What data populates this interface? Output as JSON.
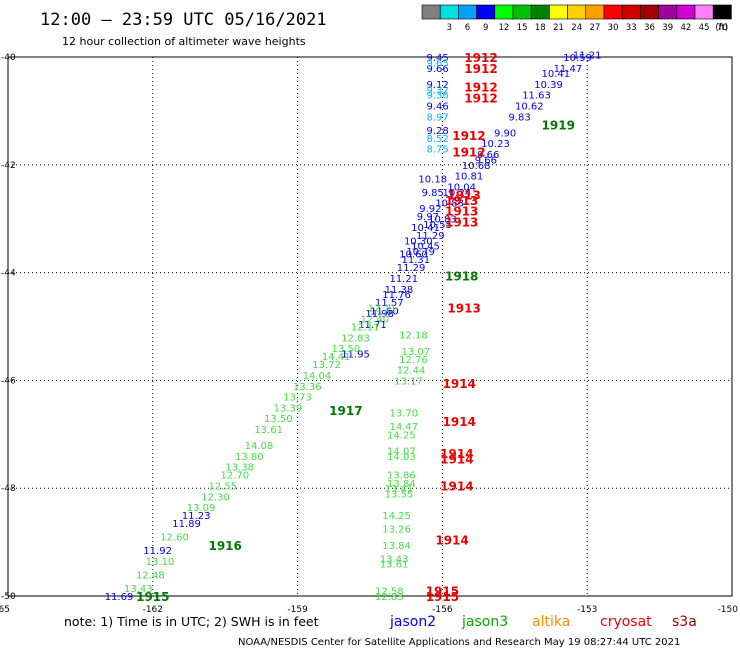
{
  "header": {
    "title": "12:00 – 23:59 UTC 05/16/2021",
    "subtitle": "12 hour collection of altimeter wave heights"
  },
  "colorbar": {
    "unit_label": "(ft)",
    "bins": [
      {
        "label": "",
        "color": "#808080"
      },
      {
        "label": "3",
        "color": "#00e0e0"
      },
      {
        "label": "6",
        "color": "#00a0ff"
      },
      {
        "label": "9",
        "color": "#0000ff"
      },
      {
        "label": "12",
        "color": "#00ff00"
      },
      {
        "label": "15",
        "color": "#00c000"
      },
      {
        "label": "18",
        "color": "#008000"
      },
      {
        "label": "21",
        "color": "#ffff00"
      },
      {
        "label": "24",
        "color": "#ffd000"
      },
      {
        "label": "27",
        "color": "#ffa000"
      },
      {
        "label": "30",
        "color": "#ff0000"
      },
      {
        "label": "33",
        "color": "#d00000"
      },
      {
        "label": "36",
        "color": "#a00000"
      },
      {
        "label": "39",
        "color": "#a000a0"
      },
      {
        "label": "42",
        "color": "#d000d0"
      },
      {
        "label": "45",
        "color": "#ff80ff"
      },
      {
        "label": "70",
        "color": "#000000"
      }
    ]
  },
  "note": "note:  1) Time is in UTC;  2) SWH is in feet",
  "satellites": [
    {
      "name": "jason2",
      "color": "#0000ee"
    },
    {
      "name": "jason3",
      "color": "#00aa00"
    },
    {
      "name": "altika",
      "color": "#ff8c00"
    },
    {
      "name": "cryosat",
      "color": "#ee0000"
    },
    {
      "name": "s3a",
      "color": "#990000"
    }
  ],
  "credit": "NOAA/NESDIS Center for Satellite Applications and Research     May 19 08:27:44 UTC 2021",
  "chart_data": {
    "type": "scatter",
    "title": "12:00 – 23:59 UTC 05/16/2021",
    "subtitle": "12 hour collection of altimeter wave heights",
    "xlabel": "",
    "ylabel": "",
    "xlim": [
      -165,
      -150
    ],
    "ylim": [
      -50,
      -40
    ],
    "x_ticks": [
      "-165",
      "-162",
      "-159",
      "-156",
      "-153",
      "-150"
    ],
    "y_ticks": [
      "-40",
      "-42",
      "-44",
      "-46",
      "-48",
      "-50"
    ],
    "grid": true,
    "units": "ft",
    "colors": {
      "jason2": "#0000ee",
      "jason3_light": "#44dd44",
      "jason3_dark": "#007700",
      "cryosat": "#ee0000",
      "cyan": "#00bbee"
    },
    "points": [
      {
        "x": -154.4,
        "y": -41.1,
        "v": "9.83",
        "c": "jason2"
      },
      {
        "x": -154.2,
        "y": -40.9,
        "v": "10.62",
        "c": "jason2"
      },
      {
        "x": -154.05,
        "y": -40.7,
        "v": "11.63",
        "c": "jason2"
      },
      {
        "x": -153.8,
        "y": -40.5,
        "v": "10.39",
        "c": "jason2"
      },
      {
        "x": -153.65,
        "y": -40.3,
        "v": "10.41",
        "c": "jason2"
      },
      {
        "x": -153.4,
        "y": -40.2,
        "v": "11.47",
        "c": "jason2"
      },
      {
        "x": -153.2,
        "y": -40.0,
        "v": "10.59",
        "c": "jason2"
      },
      {
        "x": -153.0,
        "y": -39.95,
        "v": "11.21",
        "c": "jason2"
      },
      {
        "x": -154.7,
        "y": -41.4,
        "v": "9.90",
        "c": "jason2"
      },
      {
        "x": -154.9,
        "y": -41.6,
        "v": "10.23",
        "c": "jason2"
      },
      {
        "x": -155.05,
        "y": -41.8,
        "v": "9.66",
        "c": "jason2"
      },
      {
        "x": -155.1,
        "y": -41.9,
        "v": "9.66",
        "c": "jason2"
      },
      {
        "x": -155.3,
        "y": -42.0,
        "v": "10.68",
        "c": "jason2"
      },
      {
        "x": -155.45,
        "y": -42.2,
        "v": "10.81",
        "c": "jason2"
      },
      {
        "x": -155.6,
        "y": -42.4,
        "v": "10.04",
        "c": "jason2"
      },
      {
        "x": -155.7,
        "y": -42.5,
        "v": "10.24",
        "c": "jason2"
      },
      {
        "x": -155.85,
        "y": -42.7,
        "v": "10.83",
        "c": "jason2"
      },
      {
        "x": -156.0,
        "y": -43.0,
        "v": "10.83",
        "c": "jason2"
      },
      {
        "x": -156.1,
        "y": -43.1,
        "v": "10.55",
        "c": "jason2"
      },
      {
        "x": -156.25,
        "y": -43.3,
        "v": "11.29",
        "c": "jason2"
      },
      {
        "x": -156.35,
        "y": -43.5,
        "v": "10.45",
        "c": "jason2"
      },
      {
        "x": -156.45,
        "y": -43.6,
        "v": "10.79",
        "c": "jason2"
      },
      {
        "x": -156.55,
        "y": -43.75,
        "v": "11.31",
        "c": "jason2"
      },
      {
        "x": -156.65,
        "y": -43.9,
        "v": "11.29",
        "c": "jason2"
      },
      {
        "x": -156.8,
        "y": -44.1,
        "v": "11.21",
        "c": "jason2"
      },
      {
        "x": -156.9,
        "y": -44.3,
        "v": "11.38",
        "c": "jason2"
      },
      {
        "x": -156.95,
        "y": -44.4,
        "v": "11.76",
        "c": "jason2"
      },
      {
        "x": -157.1,
        "y": -44.55,
        "v": "11.57",
        "c": "jason2"
      },
      {
        "x": -157.2,
        "y": -44.7,
        "v": "11.60",
        "c": "jason2"
      },
      {
        "x": -157.3,
        "y": -44.75,
        "v": "11.98",
        "c": "jason2"
      },
      {
        "x": -157.45,
        "y": -44.95,
        "v": "11.71",
        "c": "jason2"
      },
      {
        "x": -157.8,
        "y": -45.5,
        "v": "11.95",
        "c": "jason2"
      },
      {
        "x": -156.2,
        "y": -42.25,
        "v": "10.18",
        "c": "jason2"
      },
      {
        "x": -156.2,
        "y": -42.5,
        "v": "9.85",
        "c": "jason2"
      },
      {
        "x": -156.25,
        "y": -42.8,
        "v": "9.92",
        "c": "jason2"
      },
      {
        "x": -156.3,
        "y": -42.95,
        "v": "9.97",
        "c": "jason2"
      },
      {
        "x": -156.35,
        "y": -43.15,
        "v": "10.41",
        "c": "jason2"
      },
      {
        "x": -156.5,
        "y": -43.4,
        "v": "10.30",
        "c": "jason2"
      },
      {
        "x": -156.6,
        "y": -43.65,
        "v": "10.60",
        "c": "jason2"
      },
      {
        "x": -156.1,
        "y": -40.0,
        "v": "9.45",
        "c": "jason2"
      },
      {
        "x": -156.1,
        "y": -40.2,
        "v": "9.66",
        "c": "jason2"
      },
      {
        "x": -156.1,
        "y": -40.5,
        "v": "9.12",
        "c": "jason2"
      },
      {
        "x": -156.1,
        "y": -40.9,
        "v": "9.46",
        "c": "jason2"
      },
      {
        "x": -156.1,
        "y": -41.35,
        "v": "9.28",
        "c": "jason2"
      },
      {
        "x": -156.1,
        "y": -40.1,
        "v": "9.65",
        "c": "cyan"
      },
      {
        "x": -156.1,
        "y": -40.6,
        "v": "9.32",
        "c": "cyan"
      },
      {
        "x": -156.1,
        "y": -40.7,
        "v": "9.36",
        "c": "cyan"
      },
      {
        "x": -156.1,
        "y": -41.1,
        "v": "8.97",
        "c": "cyan"
      },
      {
        "x": -156.1,
        "y": -41.5,
        "v": "8.52",
        "c": "cyan"
      },
      {
        "x": -156.1,
        "y": -41.7,
        "v": "8.75",
        "c": "cyan"
      },
      {
        "x": -162.7,
        "y": -50.0,
        "v": "11.69",
        "c": "jason2"
      },
      {
        "x": -161.9,
        "y": -49.15,
        "v": "11.92",
        "c": "jason2"
      },
      {
        "x": -161.3,
        "y": -48.65,
        "v": "11.89",
        "c": "jason2"
      },
      {
        "x": -161.1,
        "y": -48.5,
        "v": "11.23",
        "c": "jason2"
      },
      {
        "x": -162.3,
        "y": -49.85,
        "v": "13.43",
        "c": "jason3_light"
      },
      {
        "x": -162.05,
        "y": -49.6,
        "v": "12.48",
        "c": "jason3_light"
      },
      {
        "x": -161.85,
        "y": -49.35,
        "v": "13.10",
        "c": "jason3_light"
      },
      {
        "x": -161.55,
        "y": -48.9,
        "v": "12.60",
        "c": "jason3_light"
      },
      {
        "x": -161.0,
        "y": -48.35,
        "v": "13.09",
        "c": "jason3_light"
      },
      {
        "x": -160.7,
        "y": -48.15,
        "v": "12.30",
        "c": "jason3_light"
      },
      {
        "x": -160.55,
        "y": -47.95,
        "v": "12.55",
        "c": "jason3_light"
      },
      {
        "x": -160.3,
        "y": -47.75,
        "v": "12.70",
        "c": "jason3_light"
      },
      {
        "x": -160.2,
        "y": -47.6,
        "v": "13.38",
        "c": "jason3_light"
      },
      {
        "x": -160.0,
        "y": -47.4,
        "v": "13.80",
        "c": "jason3_light"
      },
      {
        "x": -159.8,
        "y": -47.2,
        "v": "14.08",
        "c": "jason3_light"
      },
      {
        "x": -159.6,
        "y": -46.9,
        "v": "13.61",
        "c": "jason3_light"
      },
      {
        "x": -159.4,
        "y": -46.7,
        "v": "13.50",
        "c": "jason3_light"
      },
      {
        "x": -159.2,
        "y": -46.5,
        "v": "13.39",
        "c": "jason3_light"
      },
      {
        "x": -159.0,
        "y": -46.3,
        "v": "13.73",
        "c": "jason3_light"
      },
      {
        "x": -158.8,
        "y": -46.1,
        "v": "13.36",
        "c": "jason3_light"
      },
      {
        "x": -158.6,
        "y": -45.9,
        "v": "14.04",
        "c": "jason3_light"
      },
      {
        "x": -158.4,
        "y": -45.7,
        "v": "13.72",
        "c": "jason3_light"
      },
      {
        "x": -158.2,
        "y": -45.55,
        "v": "14.41",
        "c": "jason3_light"
      },
      {
        "x": -158.0,
        "y": -45.4,
        "v": "13.50",
        "c": "jason3_light"
      },
      {
        "x": -157.8,
        "y": -45.2,
        "v": "12.83",
        "c": "jason3_light"
      },
      {
        "x": -157.6,
        "y": -45.0,
        "v": "12.11",
        "c": "jason3_light"
      },
      {
        "x": -157.4,
        "y": -44.85,
        "v": "12.40",
        "c": "jason3_light"
      },
      {
        "x": -157.25,
        "y": -44.65,
        "v": "12.11",
        "c": "jason3_light"
      },
      {
        "x": -156.6,
        "y": -45.15,
        "v": "12.18",
        "c": "jason3_light"
      },
      {
        "x": -156.55,
        "y": -45.45,
        "v": "13.07",
        "c": "jason3_light"
      },
      {
        "x": -156.6,
        "y": -45.6,
        "v": "12.76",
        "c": "jason3_light"
      },
      {
        "x": -156.65,
        "y": -45.8,
        "v": "12.44",
        "c": "jason3_light"
      },
      {
        "x": -156.7,
        "y": -46.0,
        "v": "13.17",
        "c": "jason3_light"
      },
      {
        "x": -156.8,
        "y": -46.6,
        "v": "13.70",
        "c": "jason3_light"
      },
      {
        "x": -156.8,
        "y": -46.85,
        "v": "14.47",
        "c": "jason3_light"
      },
      {
        "x": -156.85,
        "y": -47.0,
        "v": "14.25",
        "c": "jason3_light"
      },
      {
        "x": -156.85,
        "y": -47.3,
        "v": "14.07",
        "c": "jason3_light"
      },
      {
        "x": -156.85,
        "y": -47.4,
        "v": "14.03",
        "c": "jason3_light"
      },
      {
        "x": -156.85,
        "y": -47.75,
        "v": "13.86",
        "c": "jason3_light"
      },
      {
        "x": -156.85,
        "y": -47.9,
        "v": "13.84",
        "c": "jason3_light"
      },
      {
        "x": -156.9,
        "y": -48.0,
        "v": "13.41",
        "c": "jason3_light"
      },
      {
        "x": -156.9,
        "y": -48.1,
        "v": "13.55",
        "c": "jason3_light"
      },
      {
        "x": -156.95,
        "y": -48.5,
        "v": "14.25",
        "c": "jason3_light"
      },
      {
        "x": -156.95,
        "y": -48.75,
        "v": "13.26",
        "c": "jason3_light"
      },
      {
        "x": -156.95,
        "y": -49.05,
        "v": "13.84",
        "c": "jason3_light"
      },
      {
        "x": -157.0,
        "y": -49.3,
        "v": "13.43",
        "c": "jason3_light"
      },
      {
        "x": -157.0,
        "y": -49.4,
        "v": "13.61",
        "c": "jason3_light"
      },
      {
        "x": -157.1,
        "y": -49.9,
        "v": "12.58",
        "c": "jason3_light"
      },
      {
        "x": -157.1,
        "y": -50.0,
        "v": "12.83",
        "c": "jason3_light"
      }
    ],
    "times": [
      {
        "x": -155.2,
        "y": -40.0,
        "v": "1912",
        "c": "cryosat"
      },
      {
        "x": -155.2,
        "y": -40.2,
        "v": "1912",
        "c": "cryosat"
      },
      {
        "x": -155.2,
        "y": -40.55,
        "v": "1912",
        "c": "cryosat"
      },
      {
        "x": -155.2,
        "y": -40.75,
        "v": "1912",
        "c": "cryosat"
      },
      {
        "x": -155.45,
        "y": -41.45,
        "v": "1912",
        "c": "cryosat"
      },
      {
        "x": -155.45,
        "y": -41.75,
        "v": "1912",
        "c": "cryosat"
      },
      {
        "x": -155.55,
        "y": -42.55,
        "v": "1913",
        "c": "cryosat"
      },
      {
        "x": -155.6,
        "y": -42.65,
        "v": "1913",
        "c": "cryosat"
      },
      {
        "x": -155.6,
        "y": -42.85,
        "v": "1913",
        "c": "cryosat"
      },
      {
        "x": -155.6,
        "y": -43.05,
        "v": "1913",
        "c": "cryosat"
      },
      {
        "x": -155.55,
        "y": -44.65,
        "v": "1913",
        "c": "cryosat"
      },
      {
        "x": -155.65,
        "y": -46.05,
        "v": "1914",
        "c": "cryosat"
      },
      {
        "x": -155.65,
        "y": -46.75,
        "v": "1914",
        "c": "cryosat"
      },
      {
        "x": -155.7,
        "y": -47.35,
        "v": "1914",
        "c": "cryosat"
      },
      {
        "x": -155.7,
        "y": -47.45,
        "v": "1914",
        "c": "cryosat"
      },
      {
        "x": -155.7,
        "y": -47.95,
        "v": "1914",
        "c": "cryosat"
      },
      {
        "x": -155.8,
        "y": -48.95,
        "v": "1914",
        "c": "cryosat"
      },
      {
        "x": -156.0,
        "y": -49.9,
        "v": "1915",
        "c": "cryosat"
      },
      {
        "x": -156.0,
        "y": -50.0,
        "v": "1915",
        "c": "cryosat"
      },
      {
        "x": -153.6,
        "y": -41.25,
        "v": "1919",
        "c": "jason3_dark"
      },
      {
        "x": -155.6,
        "y": -44.05,
        "v": "1918",
        "c": "jason3_dark"
      },
      {
        "x": -158.0,
        "y": -46.55,
        "v": "1917",
        "c": "jason3_dark"
      },
      {
        "x": -160.5,
        "y": -49.05,
        "v": "1916",
        "c": "jason3_dark"
      },
      {
        "x": -162.0,
        "y": -50.0,
        "v": "1915",
        "c": "jason3_dark"
      }
    ]
  }
}
